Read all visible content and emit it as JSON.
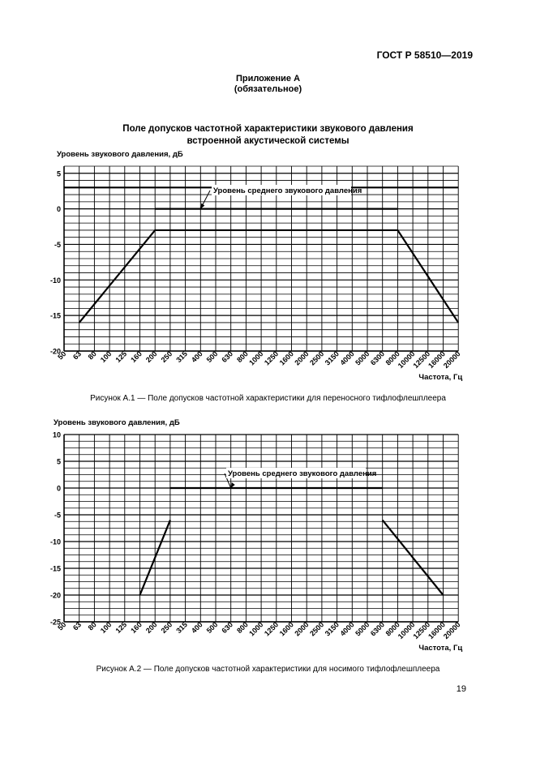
{
  "header": {
    "doc_id": "ГОСТ Р 58510—2019"
  },
  "annex": {
    "title": "Приложение А",
    "status": "(обязательное)"
  },
  "section_title": {
    "line1": "Поле допусков частотной характеристики звукового давления",
    "line2": "встроенной акустической системы"
  },
  "page_number": "19",
  "chart_data": [
    {
      "type": "line",
      "ylabel": "Уровень звукового давления, дБ",
      "xlabel": "Частота, Гц",
      "caption": "Рисунок А.1 — Поле допусков частотной характеристики для переносного тифлофлешплеера",
      "categories": [
        "50",
        "63",
        "80",
        "100",
        "125",
        "160",
        "200",
        "250",
        "315",
        "400",
        "500",
        "630",
        "800",
        "1000",
        "1250",
        "1600",
        "2000",
        "2500",
        "3150",
        "4000",
        "5000",
        "6300",
        "8000",
        "10000",
        "12500",
        "16000",
        "20000"
      ],
      "y_ticks": [
        5,
        0,
        -5,
        -10,
        -15,
        -20
      ],
      "ylim": [
        -20,
        6
      ],
      "grid": true,
      "annotation": "Уровень среднего звукового давления",
      "series": [
        {
          "role": "upper-limit",
          "points": [
            [
              "200",
              0
            ],
            [
              "8000",
              0
            ]
          ]
        },
        {
          "role": "lower-limit",
          "points": [
            [
              "63",
              -16
            ],
            [
              "200",
              -3
            ],
            [
              "8000",
              -3
            ],
            [
              "20000",
              -16
            ]
          ]
        },
        {
          "role": "reference",
          "points": [
            [
              "50",
              3
            ],
            [
              "20000",
              3
            ]
          ]
        }
      ]
    },
    {
      "type": "line",
      "ylabel": "Уровень звукового давления, дБ",
      "xlabel": "Частота, Гц",
      "caption": "Рисунок А.2 — Поле допусков частотной характеристики для носимого тифлофлешплеера",
      "categories": [
        "50",
        "63",
        "80",
        "100",
        "125",
        "160",
        "200",
        "250",
        "315",
        "400",
        "500",
        "630",
        "800",
        "1000",
        "1250",
        "1600",
        "2000",
        "2500",
        "3150",
        "4000",
        "5000",
        "6300",
        "8000",
        "10000",
        "12500",
        "16000",
        "20000"
      ],
      "y_ticks": [
        10,
        5,
        0,
        -5,
        -10,
        -15,
        -20,
        -25
      ],
      "ylim": [
        -25,
        10
      ],
      "grid": true,
      "annotation": "Уровень среднего звукового давления",
      "series": [
        {
          "role": "reference",
          "points": [
            [
              "250",
              0
            ],
            [
              "6300",
              0
            ]
          ]
        },
        {
          "role": "lower-left",
          "points": [
            [
              "160",
              -20
            ],
            [
              "250",
              -6
            ]
          ]
        },
        {
          "role": "lower-right",
          "points": [
            [
              "6300",
              -6
            ],
            [
              "16000",
              -20
            ]
          ]
        }
      ]
    }
  ]
}
